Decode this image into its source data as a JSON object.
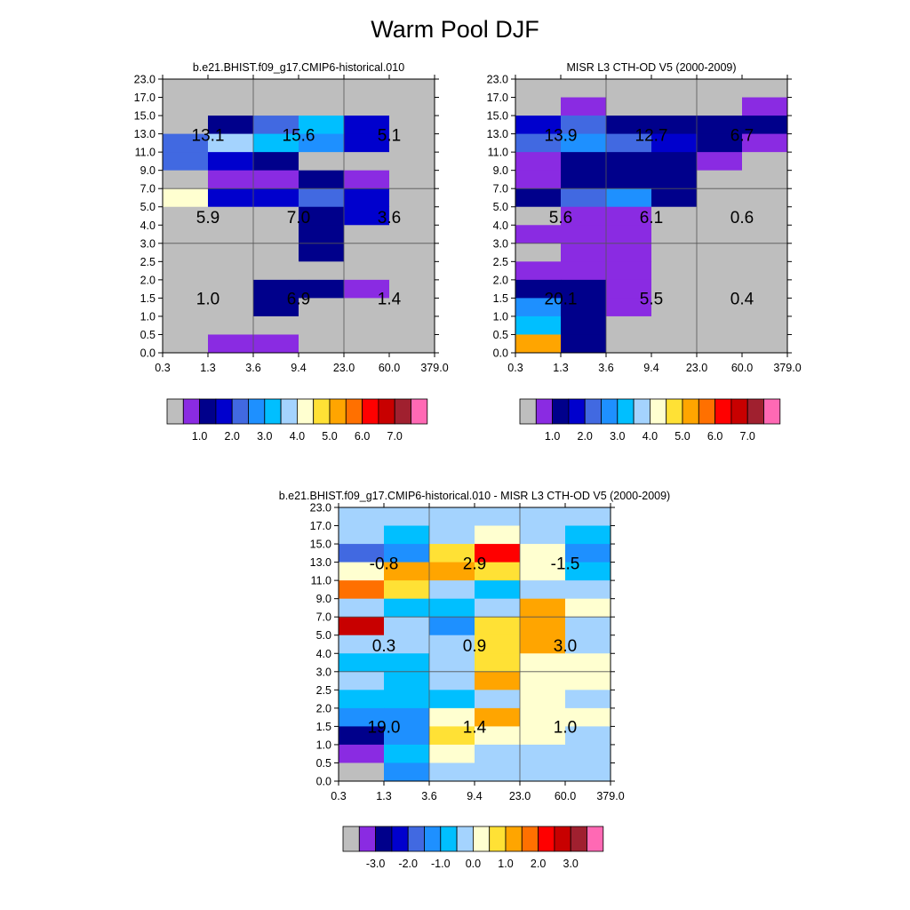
{
  "title": "Warm Pool DJF",
  "colors": {
    "background": "#ffffff",
    "missing": "#bebebe",
    "palette": [
      "#bebebe",
      "#8a2be2",
      "#00008b",
      "#0000cd",
      "#4169e1",
      "#1e90ff",
      "#00bfff",
      "#a4d3fe",
      "#ffffd0",
      "#ffe135",
      "#ffa500",
      "#ff7000",
      "#ff0000",
      "#c80000",
      "#a0202f",
      "#ff69b4"
    ]
  },
  "charts": [
    {
      "title": "b.e21.BHIST.f09_g17.CMIP6-historical.010",
      "x_ticks": [
        "0.3",
        "1.3",
        "3.6",
        "9.4",
        "23.0",
        "60.0",
        "379.0"
      ],
      "y_ticks": [
        "0.0",
        "0.5",
        "1.0",
        "1.5",
        "2.0",
        "2.5",
        "3.0",
        "4.0",
        "5.0",
        "7.0",
        "9.0",
        "11.0",
        "13.0",
        "15.0",
        "17.0",
        "23.0"
      ],
      "colorbar_labels": [
        "1.0",
        "2.0",
        "3.0",
        "4.0",
        "5.0",
        "6.0",
        "7.0"
      ],
      "color_index_rows_top_to_bottom": [
        [
          0,
          0,
          0,
          0,
          0,
          0
        ],
        [
          0,
          0,
          0,
          0,
          0,
          0
        ],
        [
          0,
          2,
          4,
          6,
          3,
          0
        ],
        [
          4,
          7,
          6,
          5,
          3,
          0
        ],
        [
          4,
          3,
          2,
          0,
          0,
          0
        ],
        [
          0,
          1,
          1,
          2,
          1,
          0
        ],
        [
          8,
          3,
          3,
          4,
          3,
          0
        ],
        [
          0,
          0,
          0,
          2,
          3,
          0
        ],
        [
          0,
          0,
          0,
          2,
          0,
          0
        ],
        [
          0,
          0,
          0,
          2,
          0,
          0
        ],
        [
          0,
          0,
          0,
          0,
          0,
          0
        ],
        [
          0,
          0,
          2,
          2,
          1,
          0
        ],
        [
          0,
          0,
          2,
          0,
          0,
          0
        ],
        [
          0,
          0,
          0,
          0,
          0,
          0
        ],
        [
          0,
          1,
          1,
          0,
          0,
          0
        ]
      ],
      "box_values": [
        [
          "13.1",
          "15.6",
          "5.1"
        ],
        [
          "5.9",
          "7.0",
          "3.6"
        ],
        [
          "1.0",
          "6.9",
          "1.4"
        ]
      ]
    },
    {
      "title": "MISR L3 CTH-OD V5 (2000-2009)",
      "x_ticks": [
        "0.3",
        "1.3",
        "3.6",
        "9.4",
        "23.0",
        "60.0",
        "379.0"
      ],
      "y_ticks": [
        "0.0",
        "0.5",
        "1.0",
        "1.5",
        "2.0",
        "2.5",
        "3.0",
        "4.0",
        "5.0",
        "7.0",
        "9.0",
        "11.0",
        "13.0",
        "15.0",
        "17.0",
        "23.0"
      ],
      "colorbar_labels": [
        "1.0",
        "2.0",
        "3.0",
        "4.0",
        "5.0",
        "6.0",
        "7.0"
      ],
      "color_index_rows_top_to_bottom": [
        [
          0,
          0,
          0,
          0,
          0,
          0
        ],
        [
          0,
          1,
          0,
          0,
          0,
          1
        ],
        [
          3,
          4,
          2,
          2,
          2,
          2
        ],
        [
          4,
          5,
          4,
          3,
          2,
          1
        ],
        [
          1,
          2,
          2,
          2,
          1,
          0
        ],
        [
          1,
          2,
          2,
          2,
          0,
          0
        ],
        [
          2,
          4,
          5,
          2,
          0,
          0
        ],
        [
          0,
          1,
          1,
          0,
          0,
          0
        ],
        [
          1,
          1,
          1,
          0,
          0,
          0
        ],
        [
          0,
          1,
          1,
          0,
          0,
          0
        ],
        [
          1,
          1,
          1,
          0,
          0,
          0
        ],
        [
          2,
          2,
          1,
          0,
          0,
          0
        ],
        [
          5,
          2,
          1,
          0,
          0,
          0
        ],
        [
          6,
          2,
          0,
          0,
          0,
          0
        ],
        [
          10,
          2,
          0,
          0,
          0,
          0
        ]
      ],
      "box_values": [
        [
          "13.9",
          "12.7",
          "6.7"
        ],
        [
          "5.6",
          "6.1",
          "0.6"
        ],
        [
          "20.1",
          "5.5",
          "0.4"
        ]
      ]
    },
    {
      "title": "b.e21.BHIST.f09_g17.CMIP6-historical.010 - MISR L3 CTH-OD V5 (2000-2009)",
      "x_ticks": [
        "0.3",
        "1.3",
        "3.6",
        "9.4",
        "23.0",
        "60.0",
        "379.0"
      ],
      "y_ticks": [
        "0.0",
        "0.5",
        "1.0",
        "1.5",
        "2.0",
        "2.5",
        "3.0",
        "4.0",
        "5.0",
        "7.0",
        "9.0",
        "11.0",
        "13.0",
        "15.0",
        "17.0",
        "23.0"
      ],
      "colorbar_labels": [
        "-3.0",
        "-2.0",
        "-1.0",
        "0.0",
        "1.0",
        "2.0",
        "3.0"
      ],
      "color_index_rows_top_to_bottom": [
        [
          7,
          7,
          7,
          7,
          7,
          7
        ],
        [
          7,
          6,
          7,
          8,
          7,
          6
        ],
        [
          4,
          5,
          9,
          12,
          8,
          5
        ],
        [
          8,
          10,
          10,
          9,
          8,
          6
        ],
        [
          11,
          9,
          7,
          6,
          7,
          7
        ],
        [
          7,
          6,
          6,
          7,
          10,
          8
        ],
        [
          13,
          7,
          5,
          9,
          10,
          7
        ],
        [
          7,
          7,
          7,
          9,
          10,
          7
        ],
        [
          6,
          6,
          7,
          9,
          8,
          8
        ],
        [
          7,
          6,
          7,
          10,
          8,
          8
        ],
        [
          6,
          6,
          6,
          7,
          8,
          7
        ],
        [
          5,
          5,
          8,
          10,
          8,
          8
        ],
        [
          2,
          5,
          9,
          8,
          8,
          7
        ],
        [
          1,
          6,
          8,
          7,
          7,
          7
        ],
        [
          0,
          5,
          7,
          7,
          7,
          7
        ]
      ],
      "box_values": [
        [
          "-0.8",
          "2.9",
          "-1.5"
        ],
        [
          "0.3",
          "0.9",
          "3.0"
        ],
        [
          "19.0",
          "1.4",
          "1.0"
        ]
      ]
    }
  ]
}
